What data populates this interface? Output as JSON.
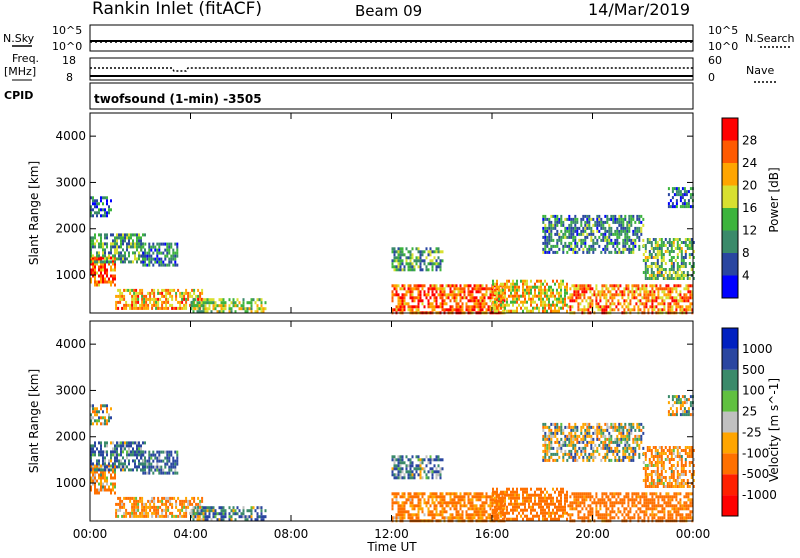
{
  "header": {
    "station": "Rankin Inlet (fitACF)",
    "beam": "Beam 09",
    "date": "14/Mar/2019"
  },
  "top_panels": {
    "nsky_label": "N.Sky",
    "nsky_ticks": [
      "10^5",
      "10^0"
    ],
    "nsearch_label": "N.Search",
    "nsearch_ticks": [
      "10^5",
      "10^0"
    ],
    "freq_label_line1": "Freq.",
    "freq_label_line2": "[MHz]",
    "freq_ticks": [
      "18",
      "8"
    ],
    "nave_label": "Nave",
    "nave_ticks": [
      "60",
      "0"
    ],
    "cpid_label": "CPID",
    "cpid_text": "twofsound (1-min) -3505"
  },
  "time_axis": {
    "label": "Time UT",
    "ticks": [
      "00:00",
      "04:00",
      "08:00",
      "12:00",
      "16:00",
      "20:00",
      "00:00"
    ]
  },
  "chart_data": [
    {
      "type": "heatmap",
      "title": "",
      "xlabel": "Time UT",
      "ylabel": "Slant Range [km]",
      "x_range_hours": [
        0,
        24
      ],
      "ylim": [
        180,
        4500
      ],
      "y_ticks": [
        1000,
        2000,
        3000,
        4000
      ],
      "colorbar_label": "Power [dB]",
      "colorbar_ticks": [
        "28",
        "24",
        "20",
        "16",
        "12",
        "8",
        "4"
      ],
      "colorbar_colors": [
        "#ff0000",
        "#ff5a00",
        "#ffa500",
        "#d8e030",
        "#3cb43c",
        "#3a8a6a",
        "#2a46a0",
        "#0000ff"
      ],
      "echo_regions": [
        {
          "t": [
            0.0,
            1.0
          ],
          "r": [
            800,
            1400
          ],
          "level": 26
        },
        {
          "t": [
            0.0,
            2.2
          ],
          "r": [
            1300,
            1900
          ],
          "level": 12
        },
        {
          "t": [
            0.0,
            0.8
          ],
          "r": [
            2300,
            2700
          ],
          "level": 8
        },
        {
          "t": [
            1.0,
            4.5
          ],
          "r": [
            300,
            700
          ],
          "level": 22
        },
        {
          "t": [
            4.0,
            7.0
          ],
          "r": [
            200,
            500
          ],
          "level": 16
        },
        {
          "t": [
            2.0,
            3.5
          ],
          "r": [
            1200,
            1700
          ],
          "level": 9
        },
        {
          "t": [
            12.0,
            16.5
          ],
          "r": [
            200,
            800
          ],
          "level": 26
        },
        {
          "t": [
            12.0,
            14.0
          ],
          "r": [
            1100,
            1600
          ],
          "level": 12
        },
        {
          "t": [
            16.0,
            19.0
          ],
          "r": [
            200,
            900
          ],
          "level": 20
        },
        {
          "t": [
            19.0,
            24.0
          ],
          "r": [
            200,
            800
          ],
          "level": 24
        },
        {
          "t": [
            18.0,
            22.0
          ],
          "r": [
            1500,
            2300
          ],
          "level": 10
        },
        {
          "t": [
            22.0,
            24.0
          ],
          "r": [
            900,
            1800
          ],
          "level": 14
        },
        {
          "t": [
            23.0,
            24.0
          ],
          "r": [
            2500,
            2900
          ],
          "level": 8
        }
      ]
    },
    {
      "type": "heatmap",
      "title": "",
      "xlabel": "Time UT",
      "ylabel": "Slant Range [km]",
      "x_range_hours": [
        0,
        24
      ],
      "ylim": [
        180,
        4500
      ],
      "y_ticks": [
        1000,
        2000,
        3000,
        4000
      ],
      "colorbar_label": "Velocity [m s^-1]",
      "colorbar_ticks": [
        "1000",
        "500",
        "100",
        "25",
        "-25",
        "-100",
        "-500",
        "-1000"
      ],
      "colorbar_colors": [
        "#0020c0",
        "#2a46a0",
        "#3a8a6a",
        "#60c040",
        "#c0c0c0",
        "#ffa500",
        "#ff7000",
        "#ff2000",
        "#ff0000"
      ],
      "echo_regions": [
        {
          "t": [
            0.0,
            1.0
          ],
          "r": [
            800,
            1400
          ],
          "level": -100
        },
        {
          "t": [
            0.0,
            2.2
          ],
          "r": [
            1300,
            1900
          ],
          "level": 100
        },
        {
          "t": [
            0.0,
            0.8
          ],
          "r": [
            2300,
            2700
          ],
          "level": 0
        },
        {
          "t": [
            1.0,
            4.5
          ],
          "r": [
            300,
            700
          ],
          "level": -100
        },
        {
          "t": [
            4.0,
            7.0
          ],
          "r": [
            200,
            500
          ],
          "level": 80
        },
        {
          "t": [
            2.0,
            3.5
          ],
          "r": [
            1200,
            1700
          ],
          "level": 120
        },
        {
          "t": [
            12.0,
            16.5
          ],
          "r": [
            200,
            800
          ],
          "level": -150
        },
        {
          "t": [
            12.0,
            14.0
          ],
          "r": [
            1100,
            1600
          ],
          "level": 90
        },
        {
          "t": [
            16.0,
            19.0
          ],
          "r": [
            200,
            900
          ],
          "level": -200
        },
        {
          "t": [
            19.0,
            24.0
          ],
          "r": [
            200,
            800
          ],
          "level": -200
        },
        {
          "t": [
            18.0,
            22.0
          ],
          "r": [
            1500,
            2300
          ],
          "level": 0
        },
        {
          "t": [
            22.0,
            24.0
          ],
          "r": [
            900,
            1800
          ],
          "level": -100
        },
        {
          "t": [
            23.0,
            24.0
          ],
          "r": [
            2500,
            2900
          ],
          "level": 0
        }
      ]
    }
  ]
}
